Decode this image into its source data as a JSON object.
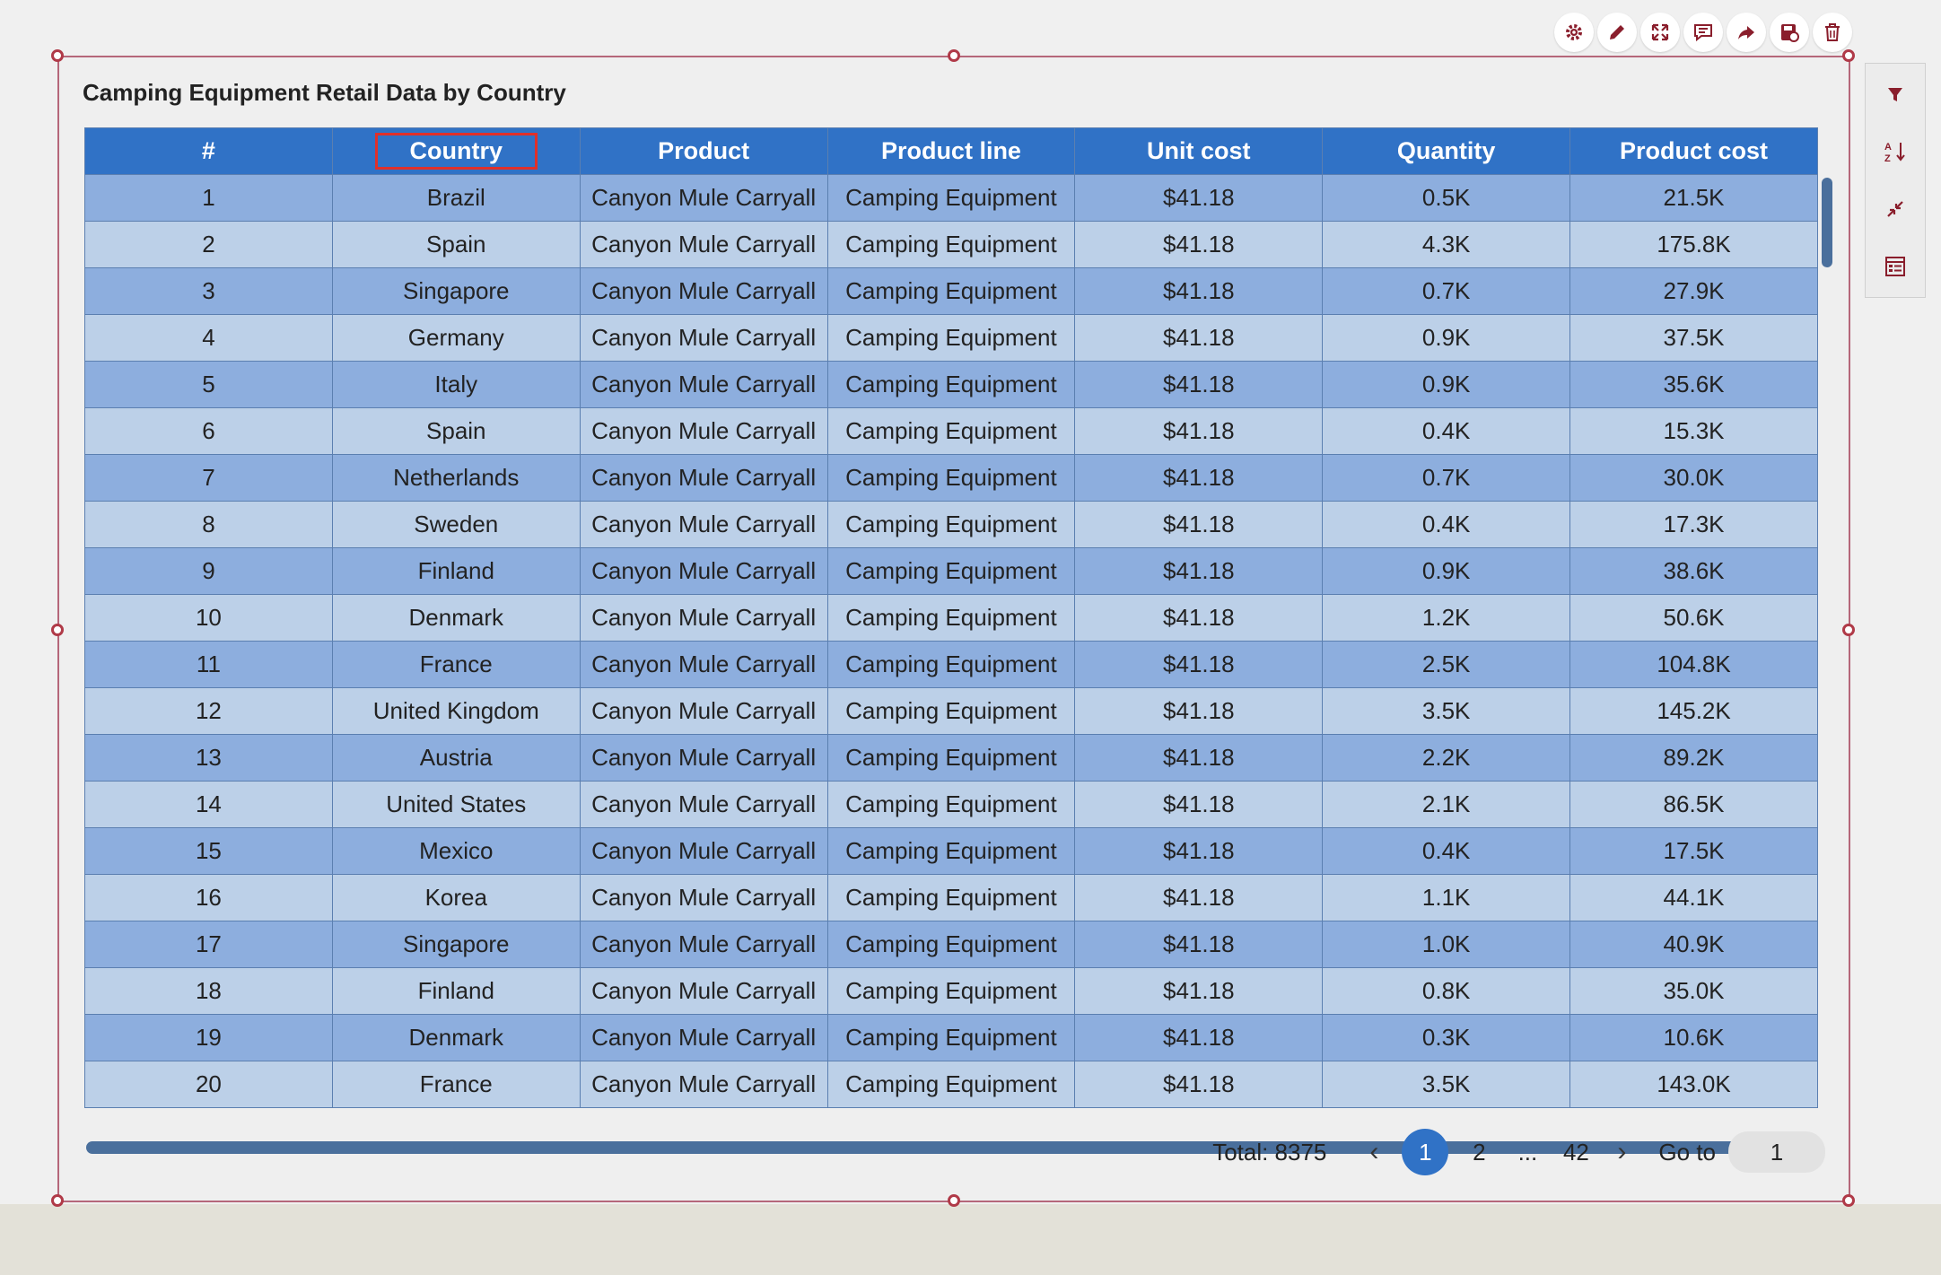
{
  "widget": {
    "title": "Camping Equipment Retail Data by Country"
  },
  "toolbar": {
    "icons": [
      "gear-icon",
      "pencil-icon",
      "expand-icon",
      "comment-icon",
      "share-icon",
      "save-data-icon",
      "trash-icon"
    ]
  },
  "side_panel": {
    "icons": [
      "filter-icon",
      "sort-icon",
      "collapse-icon",
      "table-settings-icon"
    ]
  },
  "colors": {
    "header_bg": "#3072c6",
    "row_odd": "#8daede",
    "row_even": "#bcd0e8",
    "selection_border": "#b5677a",
    "highlight_box": "#e0302a"
  },
  "table": {
    "columns": [
      "#",
      "Country",
      "Product",
      "Product line",
      "Unit cost",
      "Quantity",
      "Product cost"
    ],
    "rows": [
      [
        "1",
        "Brazil",
        "Canyon Mule Carryall",
        "Camping Equipment",
        "$41.18",
        "0.5K",
        "21.5K"
      ],
      [
        "2",
        "Spain",
        "Canyon Mule Carryall",
        "Camping Equipment",
        "$41.18",
        "4.3K",
        "175.8K"
      ],
      [
        "3",
        "Singapore",
        "Canyon Mule Carryall",
        "Camping Equipment",
        "$41.18",
        "0.7K",
        "27.9K"
      ],
      [
        "4",
        "Germany",
        "Canyon Mule Carryall",
        "Camping Equipment",
        "$41.18",
        "0.9K",
        "37.5K"
      ],
      [
        "5",
        "Italy",
        "Canyon Mule Carryall",
        "Camping Equipment",
        "$41.18",
        "0.9K",
        "35.6K"
      ],
      [
        "6",
        "Spain",
        "Canyon Mule Carryall",
        "Camping Equipment",
        "$41.18",
        "0.4K",
        "15.3K"
      ],
      [
        "7",
        "Netherlands",
        "Canyon Mule Carryall",
        "Camping Equipment",
        "$41.18",
        "0.7K",
        "30.0K"
      ],
      [
        "8",
        "Sweden",
        "Canyon Mule Carryall",
        "Camping Equipment",
        "$41.18",
        "0.4K",
        "17.3K"
      ],
      [
        "9",
        "Finland",
        "Canyon Mule Carryall",
        "Camping Equipment",
        "$41.18",
        "0.9K",
        "38.6K"
      ],
      [
        "10",
        "Denmark",
        "Canyon Mule Carryall",
        "Camping Equipment",
        "$41.18",
        "1.2K",
        "50.6K"
      ],
      [
        "11",
        "France",
        "Canyon Mule Carryall",
        "Camping Equipment",
        "$41.18",
        "2.5K",
        "104.8K"
      ],
      [
        "12",
        "United Kingdom",
        "Canyon Mule Carryall",
        "Camping Equipment",
        "$41.18",
        "3.5K",
        "145.2K"
      ],
      [
        "13",
        "Austria",
        "Canyon Mule Carryall",
        "Camping Equipment",
        "$41.18",
        "2.2K",
        "89.2K"
      ],
      [
        "14",
        "United States",
        "Canyon Mule Carryall",
        "Camping Equipment",
        "$41.18",
        "2.1K",
        "86.5K"
      ],
      [
        "15",
        "Mexico",
        "Canyon Mule Carryall",
        "Camping Equipment",
        "$41.18",
        "0.4K",
        "17.5K"
      ],
      [
        "16",
        "Korea",
        "Canyon Mule Carryall",
        "Camping Equipment",
        "$41.18",
        "1.1K",
        "44.1K"
      ],
      [
        "17",
        "Singapore",
        "Canyon Mule Carryall",
        "Camping Equipment",
        "$41.18",
        "1.0K",
        "40.9K"
      ],
      [
        "18",
        "Finland",
        "Canyon Mule Carryall",
        "Camping Equipment",
        "$41.18",
        "0.8K",
        "35.0K"
      ],
      [
        "19",
        "Denmark",
        "Canyon Mule Carryall",
        "Camping Equipment",
        "$41.18",
        "0.3K",
        "10.6K"
      ],
      [
        "20",
        "France",
        "Canyon Mule Carryall",
        "Camping Equipment",
        "$41.18",
        "3.5K",
        "143.0K"
      ]
    ]
  },
  "pagination": {
    "total_label": "Total: 8375",
    "prev_icon": "‹",
    "next_icon": "›",
    "pages": [
      "1",
      "2",
      "...",
      "42"
    ],
    "active_page": "1",
    "goto_label": "Go to",
    "goto_value": "1"
  }
}
